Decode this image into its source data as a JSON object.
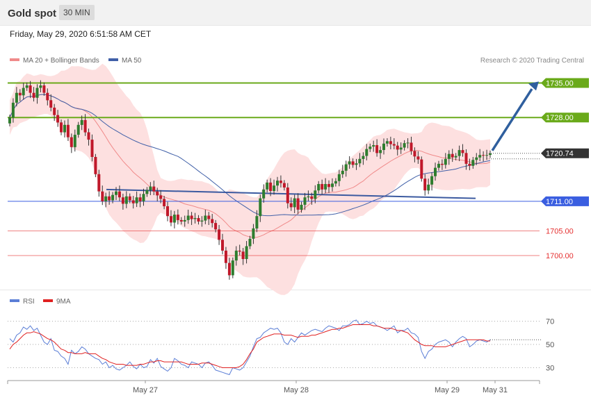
{
  "header": {
    "title": "Gold spot",
    "interval": "30 MIN"
  },
  "timestamp": "Friday, May 29, 2020 6:51:58 AM CET",
  "legend": {
    "ma20_label": "MA 20 + Bollinger Bands",
    "ma50_label": "MA 50",
    "copyright": "Research © 2020 Trading Central",
    "rsi_label": "RSI",
    "rsi_ma_label": "9MA"
  },
  "colors": {
    "resistance": "#6aaa1a",
    "support": "#3a5ee0",
    "pivot": "#333333",
    "red_level": "#e53030",
    "bollinger_fill": "#fde0e0",
    "ma20": "#f08a8a",
    "ma50": "#4060a8",
    "rsi": "#5b7ed6",
    "rsi_ma": "#e02020",
    "up_candle": "#2e7d2e",
    "down_candle": "#c0182a",
    "arrow": "#2f5f9e",
    "trendline": "#3b5aa0"
  },
  "chart_data": [
    {
      "type": "candlestick",
      "title": "Gold spot",
      "interval": "30 MIN",
      "x_tick_labels": [
        "May 27",
        "May 28",
        "May 29",
        "May 31"
      ],
      "ylim": [
        1696,
        1737
      ],
      "levels": [
        {
          "value": 1735.0,
          "label": "1735.00",
          "kind": "resistance"
        },
        {
          "value": 1728.0,
          "label": "1728.00",
          "kind": "resistance"
        },
        {
          "value": 1720.74,
          "label": "1720.74",
          "kind": "pivot"
        },
        {
          "value": 1711.0,
          "label": "1711.00",
          "kind": "support"
        },
        {
          "value": 1705.0,
          "label": "1705.00",
          "kind": "support-text"
        },
        {
          "value": 1700.0,
          "label": "1700.00",
          "kind": "support-text"
        }
      ],
      "closes": [
        1728,
        1731,
        1733,
        1732.5,
        1734,
        1734.5,
        1733,
        1732,
        1734,
        1734.5,
        1733,
        1731.5,
        1730,
        1728.5,
        1727,
        1725,
        1726.5,
        1724,
        1722,
        1724.5,
        1726.5,
        1727.5,
        1725,
        1723.5,
        1720,
        1716.5,
        1713,
        1711,
        1712,
        1711.2,
        1712.3,
        1713,
        1711.8,
        1710.5,
        1712,
        1711.2,
        1710.6,
        1711.8,
        1711,
        1712.5,
        1713.3,
        1714,
        1713,
        1712.2,
        1711.5,
        1710,
        1708,
        1706.7,
        1708.3,
        1707.2,
        1706.9,
        1707.2,
        1708.1,
        1707.4,
        1707.6,
        1706.9,
        1707.1,
        1708.1,
        1707.4,
        1706.6,
        1705.3,
        1703.2,
        1701,
        1698.5,
        1696,
        1699,
        1701,
        1700.8,
        1699.3,
        1701.9,
        1703.4,
        1705.5,
        1708,
        1711.6,
        1713.4,
        1714.8,
        1713.1,
        1714.2,
        1715.2,
        1714.7,
        1713.8,
        1710.6,
        1709.8,
        1711.6,
        1709.3,
        1710.3,
        1711.8,
        1712,
        1711.5,
        1713.2,
        1714.5,
        1713.4,
        1714.5,
        1713.9,
        1714.6,
        1715.1,
        1716.5,
        1717.2,
        1718.5,
        1719.1,
        1718.4,
        1718.7,
        1719.6,
        1720.2,
        1721.6,
        1722.1,
        1722.4,
        1720.8,
        1721.4,
        1722.7,
        1723.2,
        1722.6,
        1722.3,
        1721.5,
        1721.9,
        1722.8,
        1722.9,
        1721.2,
        1720.1,
        1719.5,
        1715.6,
        1713.2,
        1714.4,
        1716.1,
        1717.8,
        1718.6,
        1718.4,
        1719.6,
        1720.6,
        1719.9,
        1720.2,
        1721.4,
        1720.8,
        1718.6,
        1718.2,
        1719.4,
        1719.9,
        1720.4,
        1720.3,
        1720.4,
        1720.7
      ]
    },
    {
      "type": "line",
      "title": "RSI",
      "ylim": [
        20,
        80
      ],
      "y_tick_labels": [
        "70",
        "50",
        "30"
      ],
      "series": [
        {
          "name": "RSI",
          "values": [
            55,
            52,
            58,
            60,
            65,
            63,
            66,
            62,
            64,
            58,
            52,
            50,
            55,
            45,
            44,
            40,
            38,
            33,
            45,
            42,
            44,
            48,
            46,
            42,
            40,
            38,
            37,
            33,
            35,
            30,
            32,
            29,
            28,
            30,
            32,
            35,
            31,
            29,
            33,
            30,
            31,
            37,
            34,
            38,
            31,
            29,
            27,
            30,
            38,
            36,
            33,
            32,
            30,
            35,
            34,
            33,
            30,
            34,
            35,
            32,
            28,
            27,
            26,
            25,
            24,
            30,
            29,
            28,
            30,
            35,
            40,
            48,
            55,
            56,
            60,
            62,
            64,
            63,
            64,
            60,
            52,
            50,
            55,
            52,
            56,
            60,
            58,
            60,
            62,
            63,
            62,
            61,
            64,
            66,
            65,
            64,
            62,
            66,
            66,
            67,
            70,
            71,
            67,
            68,
            70,
            68,
            69,
            66,
            65,
            64,
            62,
            64,
            66,
            60,
            62,
            62,
            64,
            60,
            59,
            56,
            44,
            38,
            44,
            46,
            50,
            52,
            53,
            54,
            52,
            48,
            52,
            55,
            57,
            55,
            48,
            50,
            53,
            54,
            53,
            52,
            54
          ]
        },
        {
          "name": "9MA",
          "values": [
            46,
            50,
            52,
            55,
            58,
            60,
            60,
            61,
            60,
            59,
            57,
            55,
            54,
            52,
            49,
            46,
            45,
            43,
            43,
            42,
            42,
            42,
            43,
            42,
            42,
            42,
            40,
            38,
            37,
            35,
            34,
            33,
            33,
            33,
            32,
            32,
            32,
            32,
            33,
            33,
            34,
            35,
            35,
            36,
            36,
            35,
            35,
            35,
            35,
            35,
            35,
            34,
            33,
            33,
            33,
            33,
            34,
            34,
            34,
            33,
            32,
            31,
            30,
            30,
            30,
            30,
            30,
            31,
            33,
            37,
            42,
            46,
            52,
            54,
            56,
            57,
            58,
            59,
            59,
            59,
            58,
            58,
            58,
            57,
            56,
            57,
            57,
            57,
            58,
            58,
            59,
            60,
            61,
            62,
            63,
            63,
            64,
            64,
            65,
            66,
            67,
            67,
            67,
            67,
            67,
            67,
            66,
            66,
            65,
            64,
            64,
            64,
            63,
            62,
            62,
            61,
            60,
            57,
            54,
            52,
            50,
            49,
            49,
            49,
            48,
            48,
            48,
            48,
            49,
            50,
            51,
            52,
            53,
            54,
            54,
            54,
            54,
            54,
            54,
            53,
            53
          ]
        }
      ]
    }
  ]
}
